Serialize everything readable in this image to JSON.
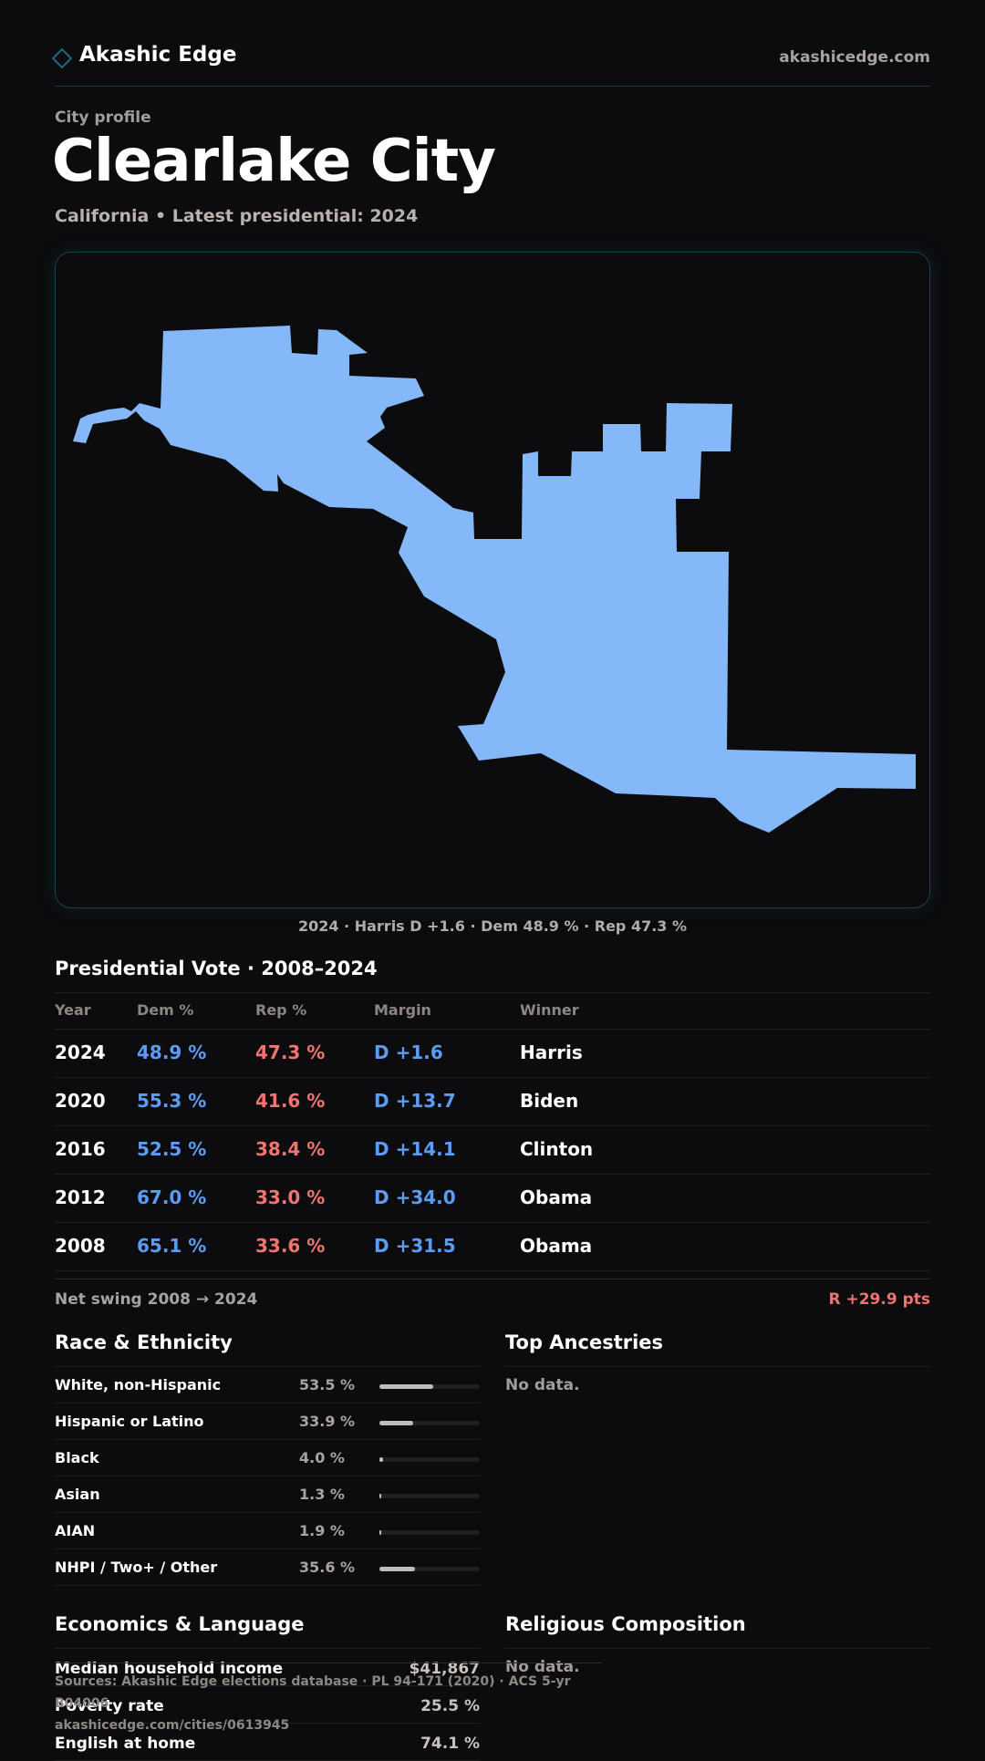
{
  "header": {
    "brand": "Akashic Edge",
    "domain": "akashicedge.com"
  },
  "profile": {
    "kicker": "City profile",
    "title": "Clearlake City",
    "subtitle": "California • Latest presidential: 2024"
  },
  "map": {
    "fill_color": "#84b8f8",
    "caption": "2024 · Harris D +1.6 · Dem 48.9 % · Rep 47.3 %"
  },
  "presidential": {
    "title": "Presidential Vote · 2008–2024",
    "headers": [
      "Year",
      "Dem %",
      "Rep %",
      "Margin",
      "Winner"
    ],
    "rows": [
      {
        "year": "2024",
        "dem": "48.9 %",
        "rep": "47.3 %",
        "margin": "D +1.6",
        "winner": "Harris"
      },
      {
        "year": "2020",
        "dem": "55.3 %",
        "rep": "41.6 %",
        "margin": "D +13.7",
        "winner": "Biden"
      },
      {
        "year": "2016",
        "dem": "52.5 %",
        "rep": "38.4 %",
        "margin": "D +14.1",
        "winner": "Clinton"
      },
      {
        "year": "2012",
        "dem": "67.0 %",
        "rep": "33.0 %",
        "margin": "D +34.0",
        "winner": "Obama"
      },
      {
        "year": "2008",
        "dem": "65.1 %",
        "rep": "33.6 %",
        "margin": "D +31.5",
        "winner": "Obama"
      }
    ],
    "swing_label": "Net swing 2008 → 2024",
    "swing_value": "R +29.9 pts"
  },
  "race": {
    "title": "Race & Ethnicity",
    "rows": [
      {
        "label": "White, non-Hispanic",
        "pct": "53.5 %",
        "value": 53.5
      },
      {
        "label": "Hispanic or Latino",
        "pct": "33.9 %",
        "value": 33.9
      },
      {
        "label": "Black",
        "pct": "4.0 %",
        "value": 4.0
      },
      {
        "label": "Asian",
        "pct": "1.3 %",
        "value": 1.3
      },
      {
        "label": "AIAN",
        "pct": "1.9 %",
        "value": 1.9
      },
      {
        "label": "NHPI / Two+ / Other",
        "pct": "35.6 %",
        "value": 35.6
      }
    ]
  },
  "ancestries": {
    "title": "Top Ancestries",
    "empty": "No data."
  },
  "economics": {
    "title": "Economics & Language",
    "rows": [
      {
        "label": "Median household income",
        "value": "$41,867"
      },
      {
        "label": "Poverty rate",
        "value": "25.5 %"
      },
      {
        "label": "English at home",
        "value": "74.1 %"
      }
    ]
  },
  "religion": {
    "title": "Religious Composition",
    "empty": "No data."
  },
  "footer": {
    "source": "Sources: Akashic Edge elections database · PL 94-171 (2020) · ACS 5-yr B04006",
    "url": "akashicedge.com/cities/0613945"
  }
}
